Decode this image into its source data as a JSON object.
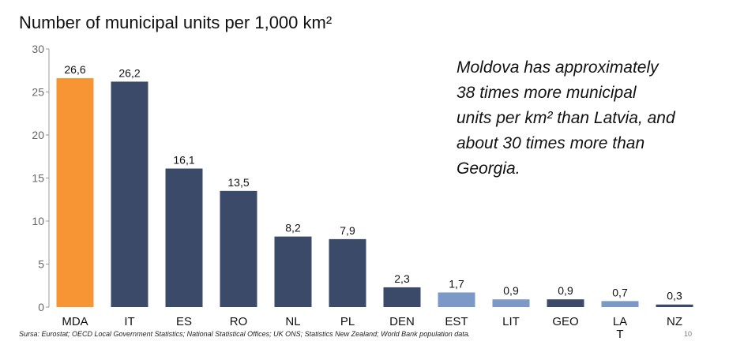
{
  "chart_data": {
    "type": "bar",
    "title": "Number of municipal units per 1,000 km²",
    "categories": [
      "MDA",
      "IT",
      "ES",
      "RO",
      "NL",
      "PL",
      "DEN",
      "EST",
      "LIT",
      "GEO",
      "LA T",
      "NZ"
    ],
    "category_lines": [
      [
        "MDA"
      ],
      [
        "IT"
      ],
      [
        "ES"
      ],
      [
        "RO"
      ],
      [
        "NL"
      ],
      [
        "PL"
      ],
      [
        "DEN"
      ],
      [
        "EST"
      ],
      [
        "LIT"
      ],
      [
        "GEO"
      ],
      [
        "LA",
        "T"
      ],
      [
        "NZ"
      ]
    ],
    "values": [
      26.6,
      26.2,
      16.1,
      13.5,
      8.2,
      7.9,
      2.3,
      1.7,
      0.9,
      0.9,
      0.7,
      0.3
    ],
    "value_labels": [
      "26,6",
      "26,2",
      "16,1",
      "13,5",
      "8,2",
      "7,9",
      "2,3",
      "1,7",
      "0,9",
      "0,9",
      "0,7",
      "0,3"
    ],
    "bar_colors": [
      "#f79433",
      "#3b4a68",
      "#3b4a68",
      "#3b4a68",
      "#3b4a68",
      "#3b4a68",
      "#3b4a68",
      "#7b98c6",
      "#7b98c6",
      "#3b4a68",
      "#7b98c6",
      "#3b4a68"
    ],
    "ylim": [
      0,
      30
    ],
    "yticks": [
      0,
      5,
      10,
      15,
      20,
      25,
      30
    ],
    "xlabel": "",
    "ylabel": "",
    "grid": false,
    "legend": "none"
  },
  "annotation_lines": [
    "Moldova has approximately",
    "38 times more municipal",
    "units per km² than Latvia, and",
    "about 30 times more than",
    "Georgia."
  ],
  "source_note": "Sursa: Eurostat; OECD Local Government Statistics; National Statistical Offices; UK ONS; Statistics New Zealand; World Bank population data.",
  "page_number": "10",
  "colors": {
    "axis": "#999999",
    "tick_label": "#666666",
    "text": "#111111"
  }
}
